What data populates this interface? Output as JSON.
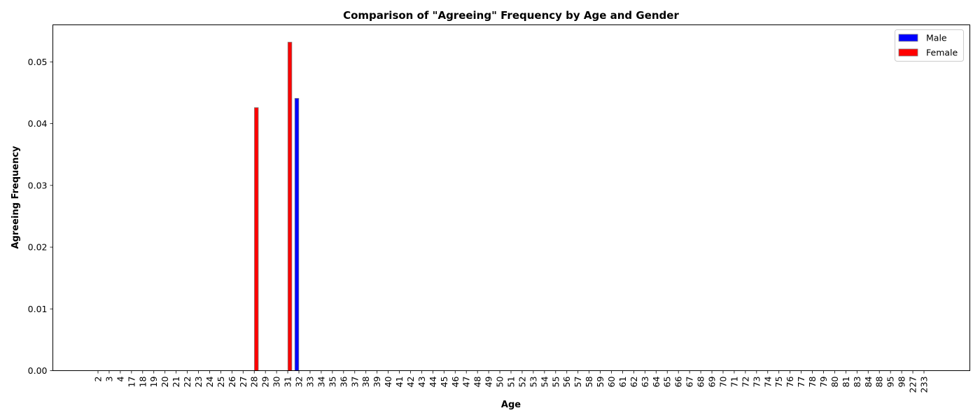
{
  "chart_data": {
    "type": "bar",
    "title": "Comparison of \"Agreeing\" Frequency by Age and Gender",
    "xlabel": "Age",
    "ylabel": "Agreeing Frequency",
    "ylim": [
      0,
      0.056
    ],
    "yticks": [
      "0.00",
      "0.01",
      "0.02",
      "0.03",
      "0.04",
      "0.05"
    ],
    "grid": false,
    "legend_position": "top-right",
    "categories": [
      "2",
      "3",
      "4",
      "17",
      "18",
      "19",
      "20",
      "21",
      "22",
      "23",
      "24",
      "25",
      "26",
      "27",
      "28",
      "29",
      "30",
      "31",
      "32",
      "33",
      "34",
      "35",
      "36",
      "37",
      "38",
      "39",
      "40",
      "41",
      "42",
      "43",
      "44",
      "45",
      "46",
      "47",
      "48",
      "49",
      "50",
      "51",
      "52",
      "53",
      "54",
      "55",
      "56",
      "57",
      "58",
      "59",
      "60",
      "61",
      "62",
      "63",
      "64",
      "65",
      "66",
      "67",
      "68",
      "69",
      "70",
      "71",
      "72",
      "73",
      "74",
      "75",
      "76",
      "77",
      "78",
      "79",
      "80",
      "81",
      "83",
      "84",
      "88",
      "95",
      "98",
      "227",
      "233"
    ],
    "series": [
      {
        "name": "Male",
        "color": "#0000ff",
        "values": [
          0,
          0,
          0,
          0,
          0,
          0,
          0,
          0,
          0,
          0,
          0,
          0,
          0,
          0,
          0,
          0,
          0,
          0,
          0.0441,
          0,
          0,
          0,
          0,
          0,
          0,
          0,
          0,
          0,
          0,
          0,
          0,
          0,
          0,
          0,
          0,
          0,
          0,
          0,
          0,
          0,
          0,
          0,
          0,
          0,
          0,
          0,
          0,
          0,
          0,
          0,
          0,
          0,
          0,
          0,
          0,
          0,
          0,
          0,
          0,
          0,
          0,
          0,
          0,
          0,
          0,
          0,
          0,
          0,
          0,
          0,
          0,
          0,
          0,
          0,
          0
        ]
      },
      {
        "name": "Female",
        "color": "#ff0000",
        "values": [
          0,
          0,
          0,
          0,
          0,
          0,
          0,
          0,
          0,
          0,
          0,
          0,
          0,
          0,
          0.0426,
          0,
          0,
          0.0532,
          0,
          0,
          0,
          0,
          0,
          0,
          0,
          0,
          0,
          0,
          0,
          0,
          0,
          0,
          0,
          0,
          0,
          0,
          0,
          0,
          0,
          0,
          0,
          0,
          0,
          0,
          0,
          0,
          0,
          0,
          0,
          0,
          0,
          0,
          0,
          0,
          0,
          0,
          0,
          0,
          0,
          0,
          0,
          0,
          0,
          0,
          0,
          0,
          0,
          0,
          0,
          0,
          0,
          0,
          0,
          0,
          0
        ]
      }
    ]
  }
}
